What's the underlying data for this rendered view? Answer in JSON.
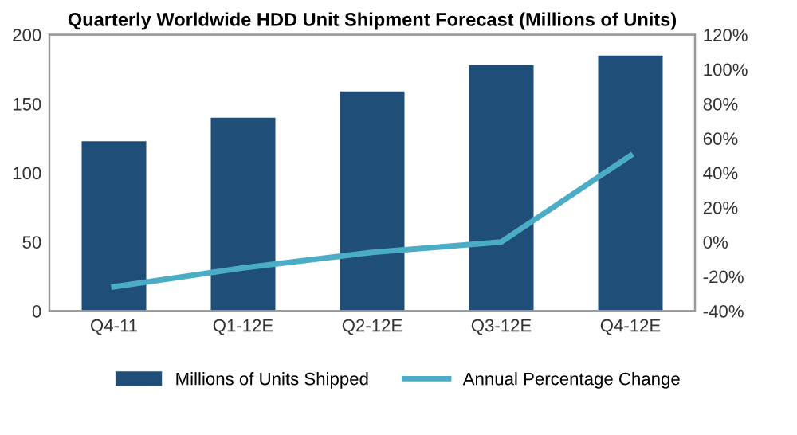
{
  "chart_data": {
    "type": "bar",
    "title": "Quarterly Worldwide HDD Unit Shipment Forecast (Millions of Units)",
    "categories": [
      "Q4-11",
      "Q1-12E",
      "Q2-12E",
      "Q3-12E",
      "Q4-12E"
    ],
    "series": [
      {
        "name": "Millions of Units Shipped",
        "color": "#1f4e79",
        "values": [
          123,
          140,
          159,
          178,
          185
        ]
      },
      {
        "name": "Annual Percentage Change",
        "type": "line",
        "axis": "y2",
        "color": "#4bacc6",
        "values": [
          -26,
          -15,
          -6,
          0,
          50
        ]
      }
    ],
    "ylim": [
      0,
      200
    ],
    "yticks": [
      0,
      50,
      100,
      150,
      200
    ],
    "y2lim": [
      -40,
      120
    ],
    "y2ticks": [
      {
        "value": -40,
        "label": "-40%"
      },
      {
        "value": -20,
        "label": "-20%"
      },
      {
        "value": 0,
        "label": "0%"
      },
      {
        "value": 20,
        "label": "20%"
      },
      {
        "value": 40,
        "label": "40%"
      },
      {
        "value": 60,
        "label": "60%"
      },
      {
        "value": 80,
        "label": "80%"
      },
      {
        "value": 100,
        "label": "100%"
      },
      {
        "value": 120,
        "label": "120%"
      }
    ],
    "legend": "bottom",
    "grid": false
  }
}
